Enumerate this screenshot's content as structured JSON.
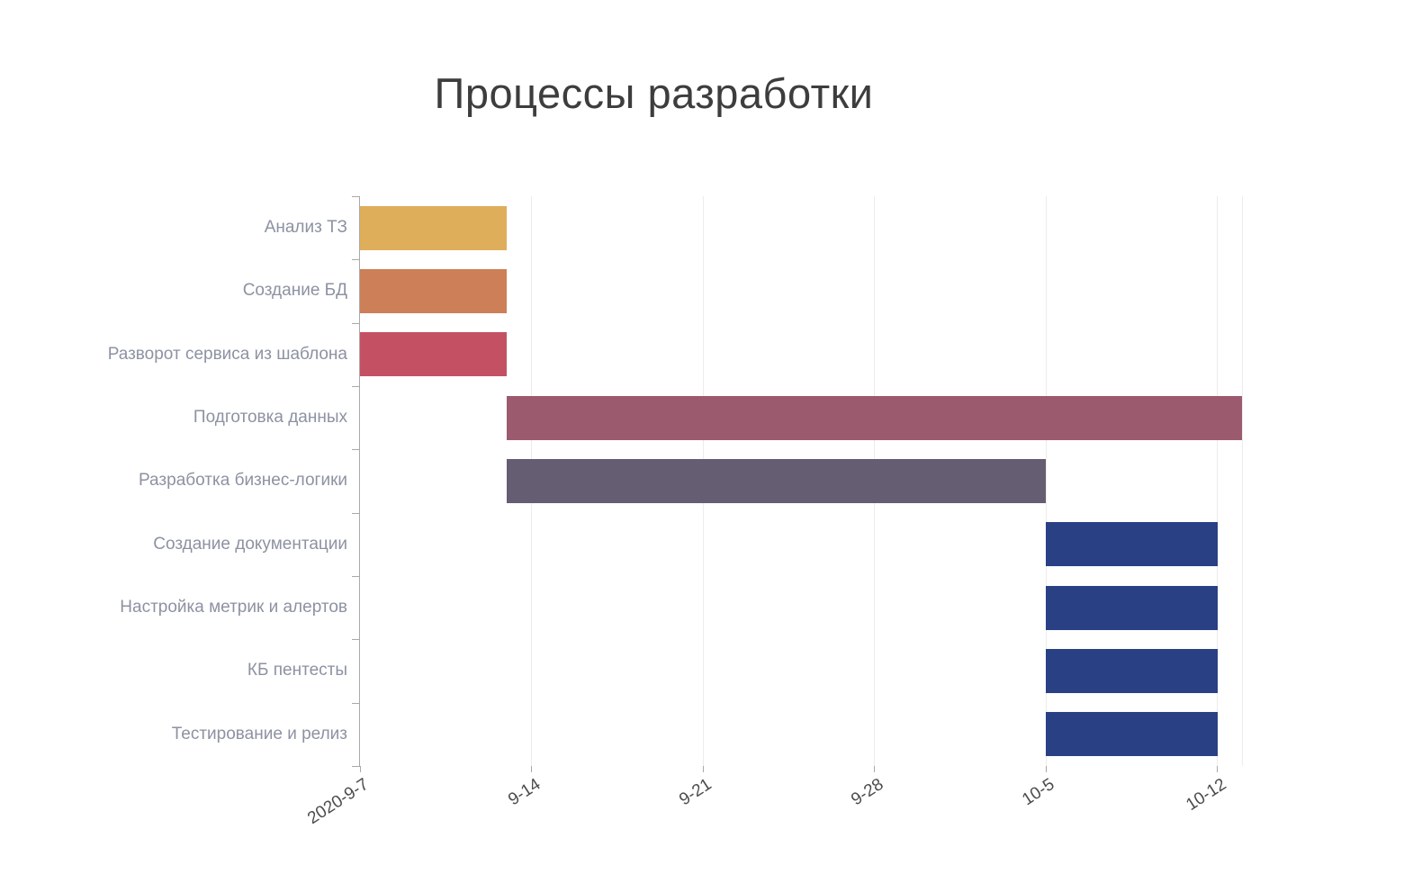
{
  "chart_data": {
    "type": "gantt-bar",
    "title": "Процессы разработки",
    "axis_start": "2020-09-07",
    "axis_end": "2020-10-13",
    "grid": true,
    "legend": "none",
    "x_ticks": [
      {
        "label": "2020-9-7",
        "date": "2020-09-07"
      },
      {
        "label": "9-14",
        "date": "2020-09-14"
      },
      {
        "label": "9-21",
        "date": "2020-09-21"
      },
      {
        "label": "9-28",
        "date": "2020-09-28"
      },
      {
        "label": "10-5",
        "date": "2020-10-05"
      },
      {
        "label": "10-12",
        "date": "2020-10-12"
      }
    ],
    "tasks": [
      {
        "name": "Анализ ТЗ",
        "start": "2020-09-07",
        "end": "2020-09-13",
        "color": "#dfae5b"
      },
      {
        "name": "Создание БД",
        "start": "2020-09-07",
        "end": "2020-09-13",
        "color": "#cd7f58"
      },
      {
        "name": "Разворот сервиса из шаблона",
        "start": "2020-09-07",
        "end": "2020-09-13",
        "color": "#c45163"
      },
      {
        "name": "Подготовка данных",
        "start": "2020-09-13",
        "end": "2020-10-13",
        "color": "#9c5a6e"
      },
      {
        "name": "Разработка бизнес-логики",
        "start": "2020-09-13",
        "end": "2020-10-05",
        "color": "#655d72"
      },
      {
        "name": "Создание документации",
        "start": "2020-10-05",
        "end": "2020-10-12",
        "color": "#2a4085"
      },
      {
        "name": "Настройка метрик и алертов",
        "start": "2020-10-05",
        "end": "2020-10-12",
        "color": "#2a4085"
      },
      {
        "name": "КБ пентесты",
        "start": "2020-10-05",
        "end": "2020-10-12",
        "color": "#2a4085"
      },
      {
        "name": "Тестирование и релиз",
        "start": "2020-10-05",
        "end": "2020-10-12",
        "color": "#2a4085"
      }
    ],
    "colors": {
      "background": "#ffffff",
      "grid": "#ececec",
      "axis": "#a9a9a9",
      "y_label": "#8d92a2",
      "x_label": "#4c4c4c",
      "title": "#3d3d3d"
    }
  }
}
